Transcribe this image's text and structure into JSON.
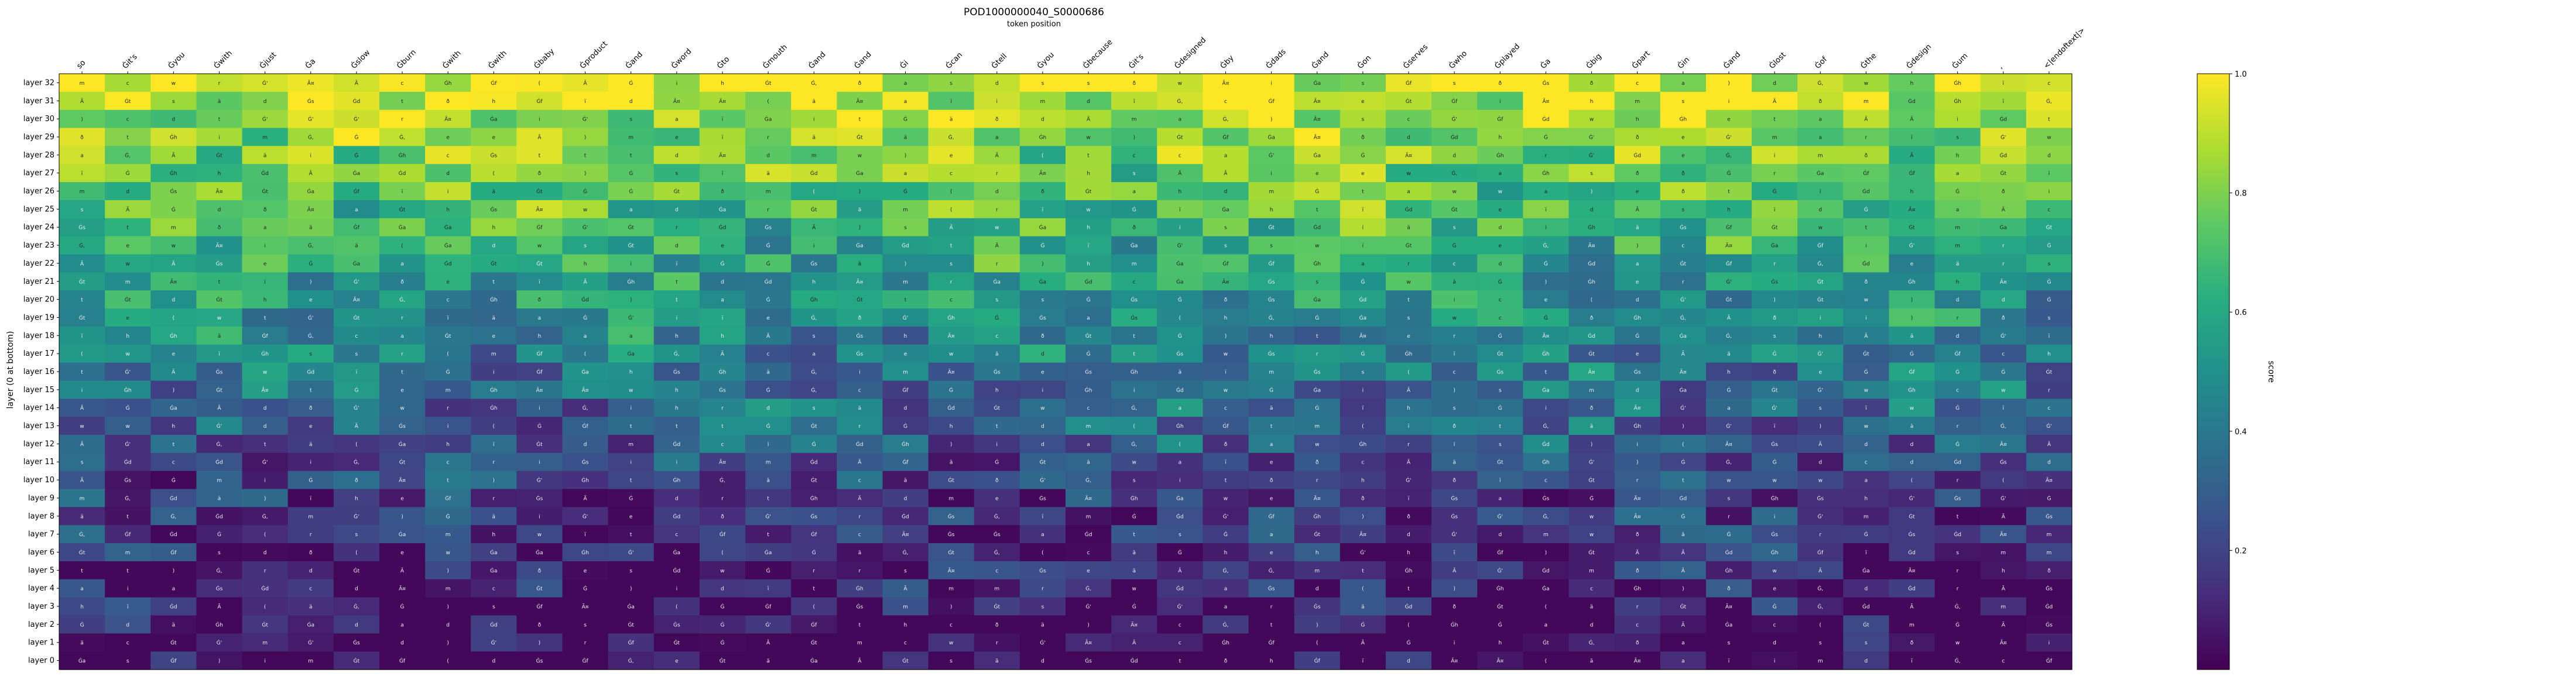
{
  "chart_data": {
    "type": "heatmap",
    "title": "POD1000000040_S0000686",
    "xlabel": "token position",
    "ylabel": "layer (0 at bottom)",
    "colorbar_label": "score",
    "vmin": 0.0,
    "vmax": 1.0,
    "colorbar_ticks": [
      "0.2",
      "0.4",
      "0.6",
      "0.8",
      "1.0"
    ],
    "colormap": "viridis",
    "x_tokens": [
      "so",
      "Ġit's",
      "Ġyou",
      "Ġwith",
      "Ġjust",
      "Ġa",
      "Ġslow",
      "Ġburn",
      "Ġwith",
      "Ġwith",
      "Ġbaby",
      "Ġproduct",
      "Ġand",
      "Ġword",
      "Ġto",
      "Ġmouth",
      "Ġand",
      "Ġand",
      "Ġi",
      "Ġcan",
      "Ġtell",
      "Ġyou",
      "Ġbecause",
      "Ġit's",
      "Ġdesigned",
      "Ġby",
      "Ġdads",
      "Ġand",
      "Ġon",
      "Ġserves",
      "Ġwho",
      "Ġplayed",
      "Ġa",
      "Ġbig",
      "Ġpart",
      "Ġin",
      "Ġand",
      "Ġlost",
      "Ġof",
      "Ġthe",
      "Ġdesign",
      "Ġum",
      ",",
      "<|endoftext|>"
    ],
    "layers": [
      "layer 0",
      "layer 1",
      "layer 2",
      "layer 3",
      "layer 4",
      "layer 5",
      "layer 6",
      "layer 7",
      "layer 8",
      "layer 9",
      "layer 10",
      "layer 11",
      "layer 12",
      "layer 13",
      "layer 14",
      "layer 15",
      "layer 16",
      "layer 17",
      "layer 18",
      "layer 19",
      "layer 20",
      "layer 21",
      "layer 22",
      "layer 23",
      "layer 24",
      "layer 25",
      "layer 26",
      "layer 27",
      "layer 28",
      "layer 29",
      "layer 30",
      "layer 31",
      "layer 32"
    ],
    "cell_glyphs": [
      "a",
      "ä",
      "Ã",
      "ï",
      "t",
      "i",
      "(",
      "Ġ",
      "h",
      "e",
      "w",
      "Ġ",
      ")",
      "c",
      "m",
      "r",
      "d",
      "s",
      "Ã¤",
      "ð",
      "Ġ,",
      "Ġt",
      "Ġd",
      "Ġa",
      "Ġh",
      "Ġs",
      "Ġ'",
      "Ġf"
    ]
  }
}
